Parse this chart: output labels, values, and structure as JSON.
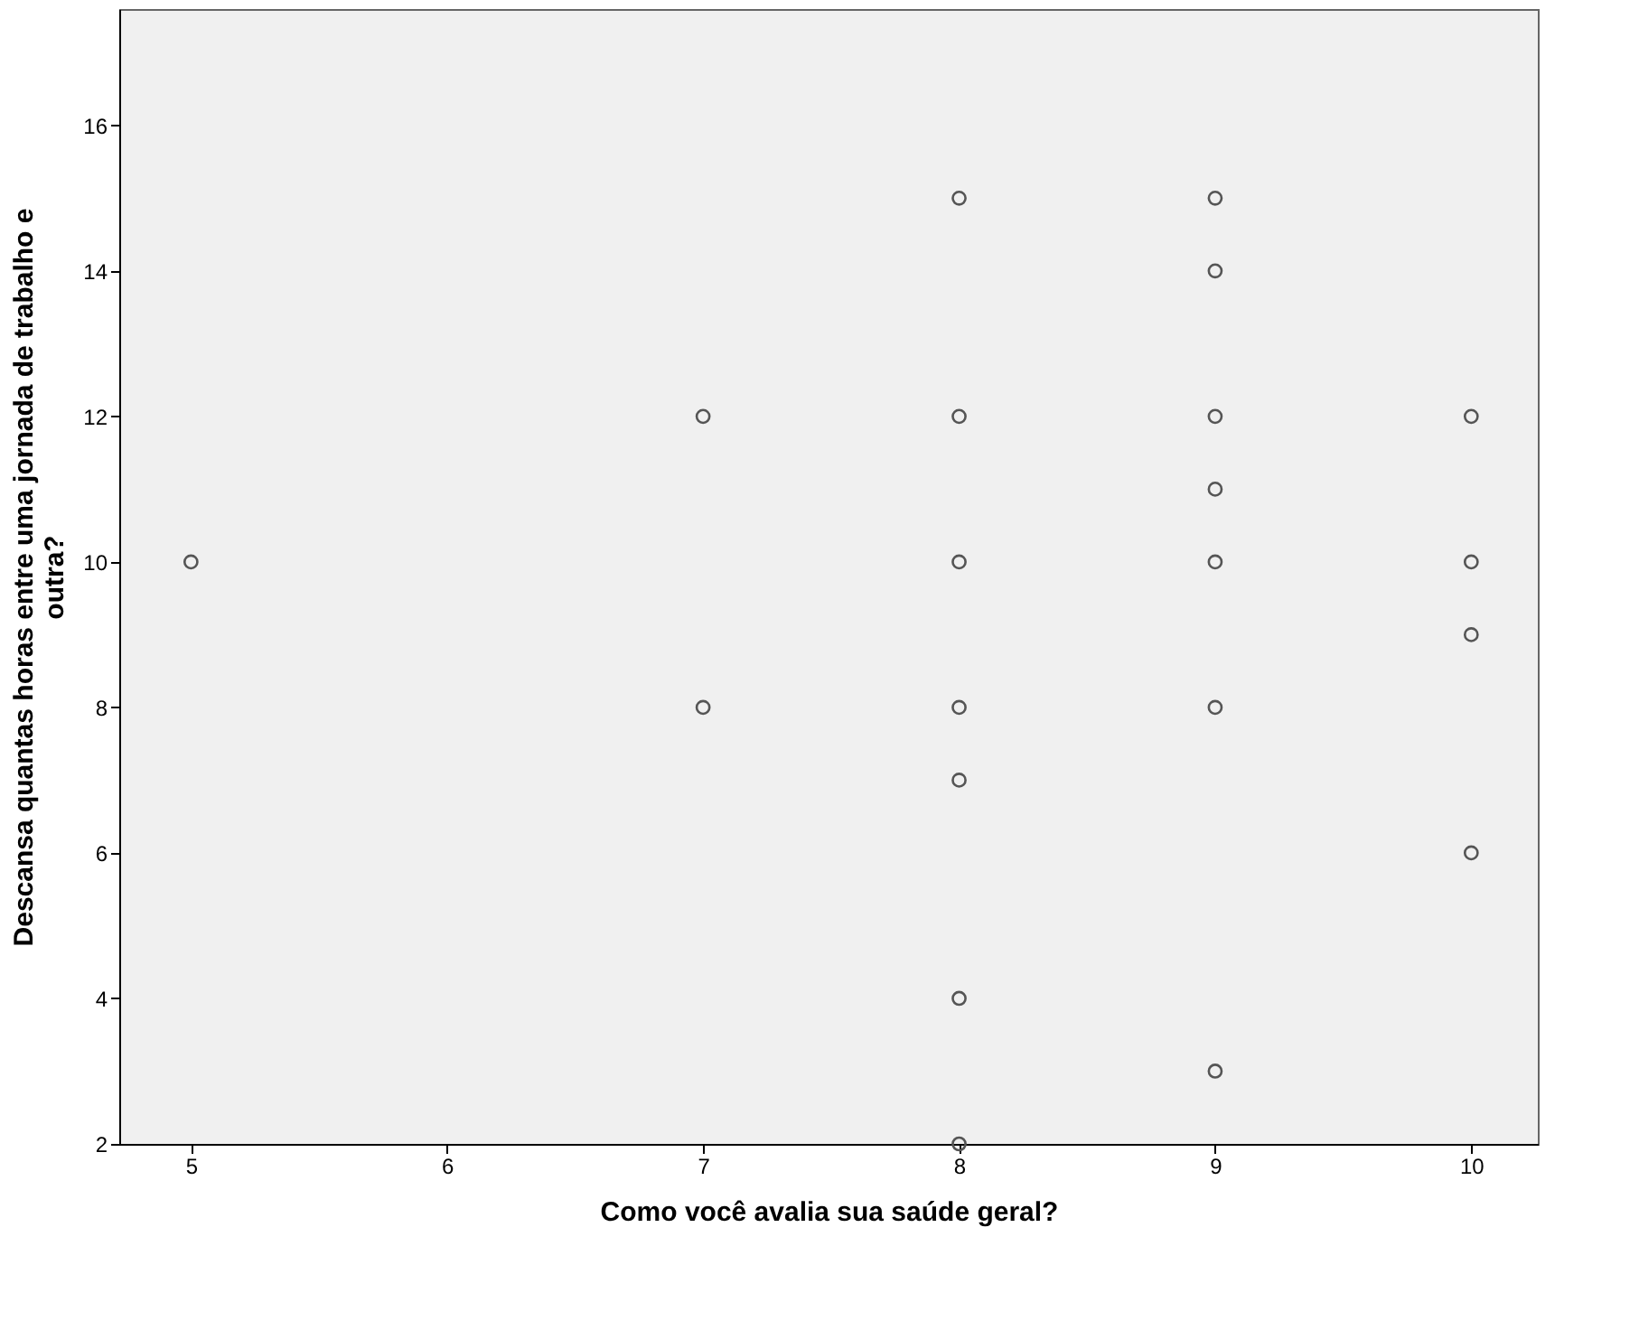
{
  "chart_data": {
    "type": "scatter",
    "xlabel": "Como você avalia sua saúde geral?",
    "ylabel": "Descansa quantas horas entre uma jornada de trabalho e outra?",
    "x": [
      5,
      7,
      7,
      8,
      8,
      8,
      8,
      8,
      8,
      8,
      9,
      9,
      9,
      9,
      9,
      9,
      9,
      10,
      10,
      10,
      10
    ],
    "values": [
      10,
      12,
      8,
      15,
      12,
      10,
      8,
      7,
      4,
      2,
      15,
      14,
      12,
      11,
      10,
      8,
      3,
      12,
      10,
      9,
      6
    ],
    "color": "#555555",
    "marker": "circle",
    "grid": false,
    "xlim": [
      4.72,
      10.26
    ],
    "xticks": [
      5,
      6,
      7,
      8,
      9,
      10
    ],
    "ylim": [
      2,
      17.6
    ],
    "yticks": [
      2,
      4,
      6,
      8,
      10,
      12,
      14,
      16
    ]
  }
}
